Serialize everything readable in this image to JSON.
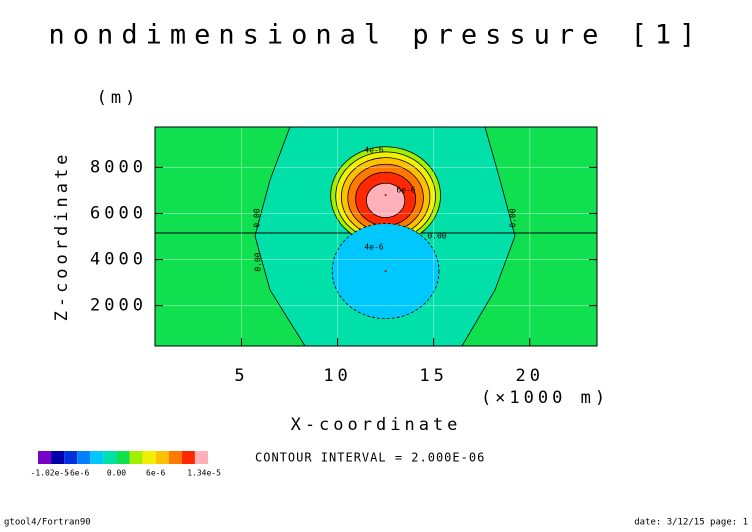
{
  "chart_data": {
    "type": "contour",
    "title": "nondimensional pressure [1]",
    "y_unit": "(m)",
    "y_label": "Z-coordinate",
    "x_label": "X-coordinate",
    "x_unit": "(×1000 m)",
    "xlim": [
      0.5,
      23.5
    ],
    "xticks": [
      5,
      10,
      15,
      20
    ],
    "ylim": [
      250,
      9750
    ],
    "yticks": [
      2000,
      4000,
      6000,
      8000
    ],
    "grid": true,
    "extrema": [
      {
        "x": 12.5,
        "y": 6800,
        "value": 1.34e-05
      },
      {
        "x": 12.5,
        "y": 3500,
        "value": -1.02e-05
      }
    ],
    "contour_labels": [
      "4e-6",
      "6e-6",
      "0.00",
      "4e-6",
      "0.00",
      "0.00",
      "0.00"
    ],
    "colorbar": {
      "edges": [
        -1.2e-05,
        -1e-05,
        -8e-06,
        -6e-06,
        -4e-06,
        -2e-06,
        0,
        2e-06,
        4e-06,
        6e-06,
        8e-06,
        1e-05,
        1.2e-05,
        1.4e-05
      ],
      "colors": [
        "#7a00c8",
        "#0000a8",
        "#0030e0",
        "#0080ff",
        "#00c8ff",
        "#00e0a8",
        "#10e050",
        "#a0f000",
        "#f0f000",
        "#ffc000",
        "#ff7800",
        "#ff2800",
        "#ffb0b8"
      ],
      "ticks": [
        {
          "value": -1.02e-05,
          "label": "-1.02e-5"
        },
        {
          "value": -6e-06,
          "label": "-6e-6"
        },
        {
          "value": 0,
          "label": "0.00"
        },
        {
          "value": 6e-06,
          "label": "6e-6"
        },
        {
          "value": 1.34e-05,
          "label": "1.34e-5"
        }
      ]
    },
    "contour_interval": "CONTOUR INTERVAL = 2.000E-06",
    "footer_left": "gtool4/Fortran90",
    "footer_right": "date: 3/12/15 page: 1"
  }
}
